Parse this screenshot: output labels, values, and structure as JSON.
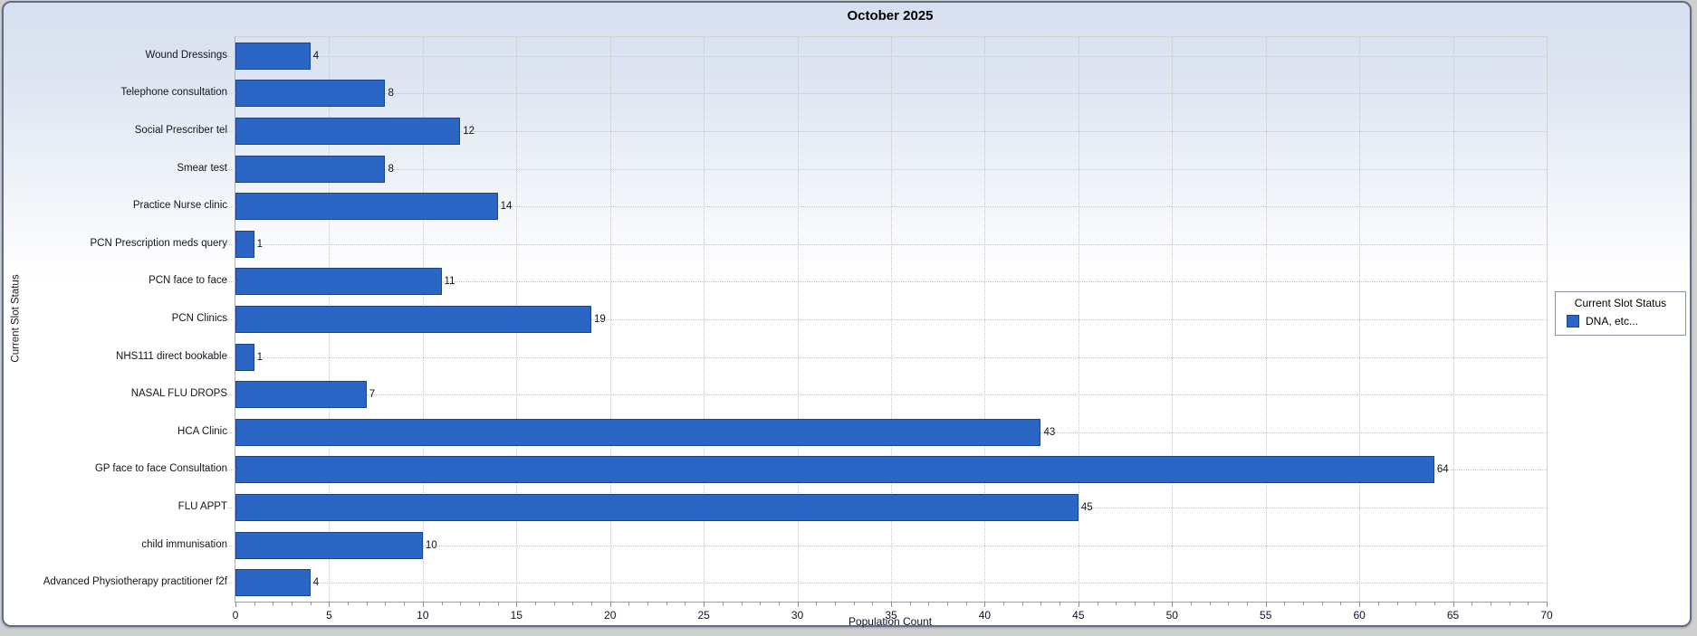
{
  "title": "October 2025",
  "axes": {
    "x_label": "Population Count",
    "y_label": "Current Slot Status",
    "x_min": 0,
    "x_max": 70,
    "x_major_step": 5,
    "x_minor_step": 1
  },
  "legend": {
    "title": "Current Slot Status",
    "items": [
      {
        "label": "DNA, etc...",
        "color": "#2b66c4"
      }
    ]
  },
  "chart_data": {
    "type": "bar",
    "orientation": "horizontal",
    "title": "October 2025",
    "xlabel": "Population Count",
    "ylabel": "Current Slot Status",
    "xlim": [
      0,
      70
    ],
    "grid": true,
    "legend_position": "right",
    "series_name": "DNA, etc...",
    "bar_color": "#2b66c4",
    "bar_border_color": "#1c4390",
    "categories": [
      "Wound Dressings",
      "Telephone consultation",
      "Social Prescriber tel",
      "Smear test",
      "Practice Nurse clinic",
      "PCN Prescription meds query",
      "PCN face to face",
      "PCN Clinics",
      "NHS111 direct bookable",
      "NASAL FLU DROPS",
      "HCA Clinic",
      "GP face to face Consultation",
      "FLU APPT",
      "child immunisation",
      "Advanced Physiotherapy practitioner f2f"
    ],
    "values": [
      4,
      8,
      12,
      8,
      14,
      1,
      11,
      19,
      1,
      7,
      43,
      64,
      45,
      10,
      4
    ]
  }
}
